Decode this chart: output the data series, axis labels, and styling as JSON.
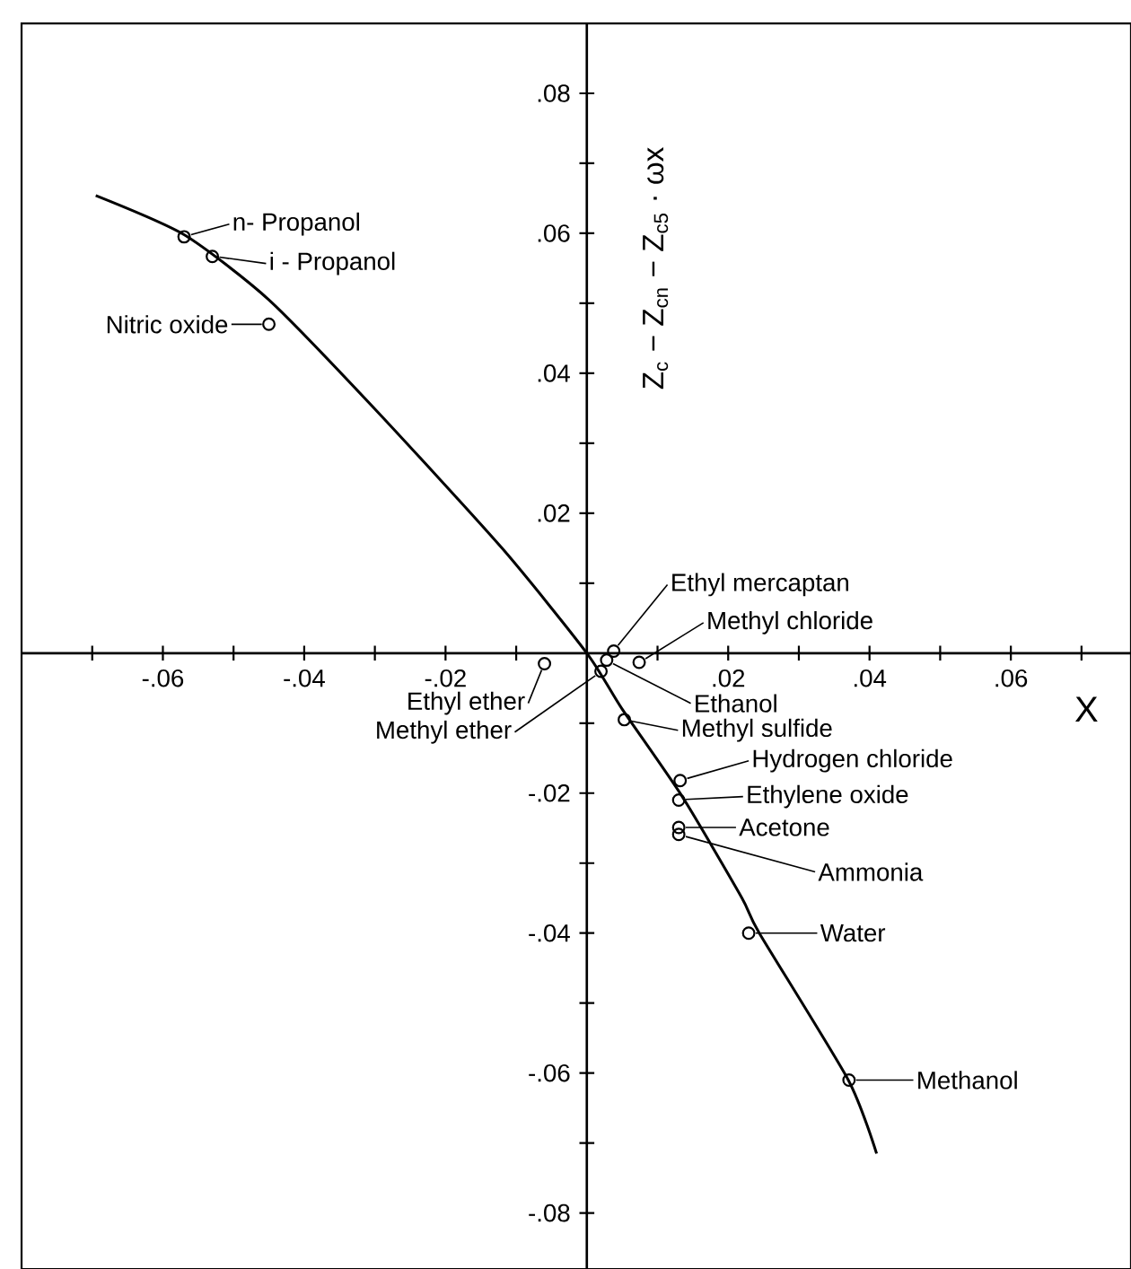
{
  "chart_data": {
    "type": "scatter",
    "ylabel": "Z$_{c}$ − Z$_{cn}$ − Z$_{c5}$ · ωx",
    "xlabel": "X",
    "xlim": [
      -0.08,
      0.077
    ],
    "ylim": [
      -0.088,
      0.09
    ],
    "xticks": [
      {
        "value": -0.07,
        "label": null
      },
      {
        "value": -0.06,
        "label": "-.06"
      },
      {
        "value": -0.05,
        "label": null
      },
      {
        "value": -0.04,
        "label": "-.04"
      },
      {
        "value": -0.03,
        "label": null
      },
      {
        "value": -0.02,
        "label": "-.02"
      },
      {
        "value": -0.01,
        "label": null
      },
      {
        "value": 0.01,
        "label": null
      },
      {
        "value": 0.02,
        "label": ".02"
      },
      {
        "value": 0.03,
        "label": null
      },
      {
        "value": 0.04,
        "label": ".04"
      },
      {
        "value": 0.05,
        "label": null
      },
      {
        "value": 0.06,
        "label": ".06"
      },
      {
        "value": 0.07,
        "label": null
      }
    ],
    "yticks": [
      {
        "value": -0.08,
        "label": "-.08"
      },
      {
        "value": -0.07,
        "label": null
      },
      {
        "value": -0.06,
        "label": "-.06"
      },
      {
        "value": -0.05,
        "label": null
      },
      {
        "value": -0.04,
        "label": "-.04"
      },
      {
        "value": -0.03,
        "label": null
      },
      {
        "value": -0.02,
        "label": "-.02"
      },
      {
        "value": -0.01,
        "label": null
      },
      {
        "value": 0.01,
        "label": null
      },
      {
        "value": 0.02,
        "label": ".02"
      },
      {
        "value": 0.03,
        "label": null
      },
      {
        "value": 0.04,
        "label": ".04"
      },
      {
        "value": 0.05,
        "label": null
      },
      {
        "value": 0.06,
        "label": ".06"
      },
      {
        "value": 0.07,
        "label": null
      },
      {
        "value": 0.08,
        "label": ".08"
      }
    ],
    "grid": false,
    "series": [
      {
        "type": "scatter",
        "color": "#000000",
        "marker": "circle",
        "x": [
          -0.057,
          -0.053,
          -0.045,
          -0.006,
          0.002,
          0.0038,
          0.0074,
          0.0028,
          0.0053,
          0.0132,
          0.013,
          0.013,
          0.013,
          0.0229,
          0.0371
        ],
        "values": [
          0.0595,
          0.0567,
          0.047,
          -0.0015,
          -0.0026,
          0.0003,
          -0.0013,
          -0.001,
          -0.0095,
          -0.0182,
          -0.021,
          -0.0249,
          -0.0259,
          -0.04,
          -0.061
        ]
      },
      {
        "type": "line",
        "color": "#000000",
        "marker": "none",
        "line_style": "solid",
        "x": [
          -0.0695,
          -0.057,
          -0.045,
          -0.03,
          -0.012,
          0,
          0.005,
          0.0135,
          0.0219,
          0.0244,
          0.037,
          0.041
        ],
        "values": [
          0.0654,
          0.0598,
          0.0505,
          0.0349,
          0.015,
          0,
          -0.008,
          -0.0205,
          -0.0349,
          -0.04,
          -0.061,
          -0.0715
        ]
      }
    ],
    "annotations": [
      {
        "text": "n- Propanol",
        "x": -0.057,
        "y": 0.0595
      },
      {
        "text": "i - Propanol",
        "x": -0.053,
        "y": 0.0567
      },
      {
        "text": "Nitric oxide",
        "x": -0.045,
        "y": 0.047
      },
      {
        "text": "Ethyl ether",
        "x": -0.006,
        "y": -0.0015
      },
      {
        "text": "Methyl ether",
        "x": 0.002,
        "y": -0.0026
      },
      {
        "text": "Ethyl mercaptan",
        "x": 0.0038,
        "y": 0.0003
      },
      {
        "text": "Methyl chloride",
        "x": 0.0074,
        "y": -0.0013
      },
      {
        "text": "Ethanol",
        "x": 0.0028,
        "y": -0.001
      },
      {
        "text": "Methyl sulfide",
        "x": 0.0053,
        "y": -0.0095
      },
      {
        "text": "Hydrogen chloride",
        "x": 0.0132,
        "y": -0.0182
      },
      {
        "text": "Ethylene oxide",
        "x": 0.013,
        "y": -0.021
      },
      {
        "text": "Acetone",
        "x": 0.013,
        "y": -0.0249
      },
      {
        "text": "Ammonia",
        "x": 0.013,
        "y": -0.0259
      },
      {
        "text": "Water",
        "x": 0.0229,
        "y": -0.04
      },
      {
        "text": "Methanol",
        "x": 0.0371,
        "y": -0.061
      }
    ]
  }
}
